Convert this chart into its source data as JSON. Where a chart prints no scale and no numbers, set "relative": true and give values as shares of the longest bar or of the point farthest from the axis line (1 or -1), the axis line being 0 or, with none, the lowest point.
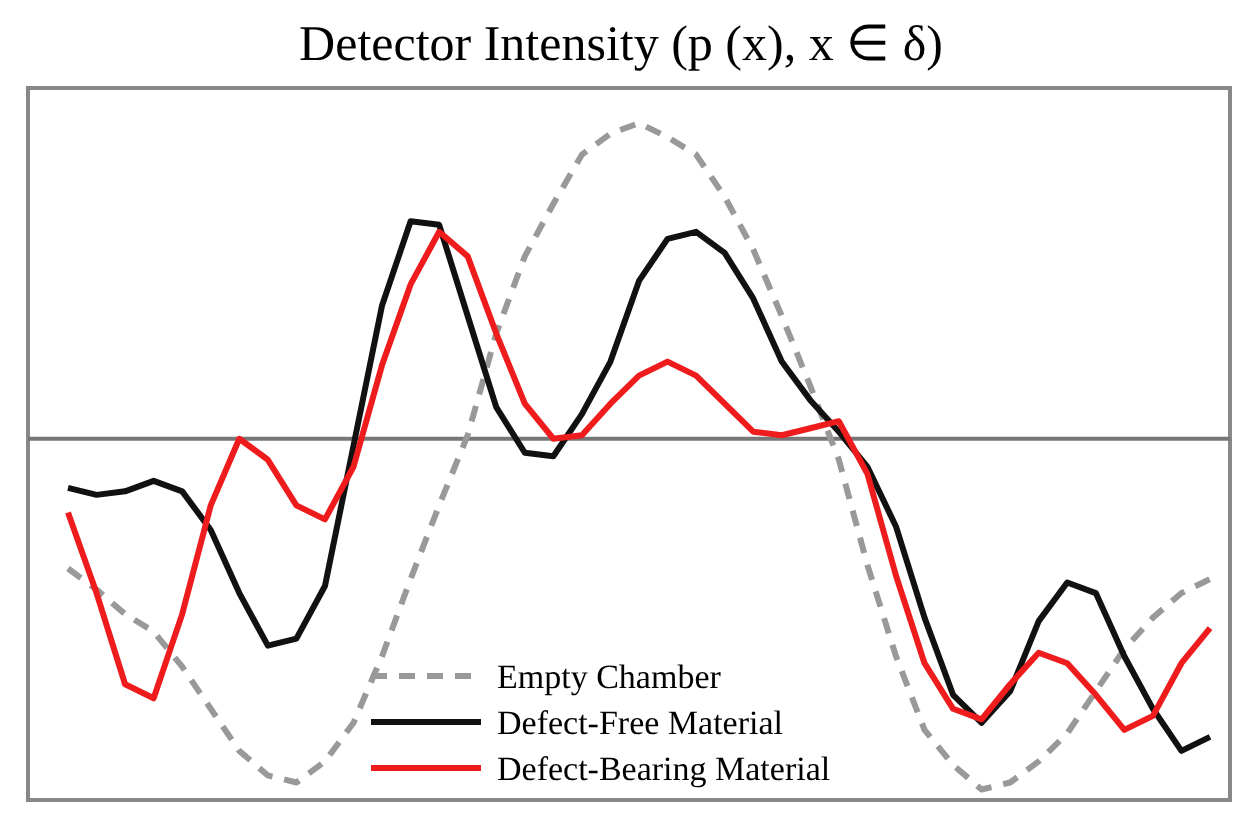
{
  "chart_data": {
    "type": "line",
    "title": "Detector Intensity (p (x), x ∈ δ)",
    "relative": true,
    "legend": "bottom",
    "marker": "none",
    "categories": [
      null,
      null,
      null,
      null,
      null,
      null,
      null,
      null,
      null,
      null,
      null,
      null,
      null,
      null,
      null,
      null,
      null,
      null,
      null,
      null,
      null,
      null,
      null,
      null,
      null,
      null,
      null,
      null,
      null,
      null,
      null,
      null,
      null,
      null,
      null,
      null,
      null,
      null,
      null,
      null,
      null
    ],
    "series": [
      {
        "name": "Empty Chamber",
        "color": "#999999",
        "line_style": "dashed",
        "values": [
          -0.37,
          -0.43,
          -0.5,
          -0.55,
          -0.65,
          -0.77,
          -0.89,
          -0.96,
          -0.98,
          -0.92,
          -0.81,
          -0.62,
          -0.4,
          -0.19,
          0.01,
          0.3,
          0.52,
          0.67,
          0.81,
          0.87,
          0.9,
          0.86,
          0.81,
          0.69,
          0.54,
          0.35,
          0.15,
          -0.06,
          -0.36,
          -0.62,
          -0.83,
          -0.93,
          -1.0,
          -0.98,
          -0.92,
          -0.84,
          -0.72,
          -0.6,
          -0.51,
          -0.44,
          -0.4
        ]
      },
      {
        "name": "Defect-Free Material",
        "color": "#111111",
        "line_style": "solid",
        "values": [
          -0.14,
          -0.16,
          -0.15,
          -0.12,
          -0.15,
          -0.26,
          -0.44,
          -0.59,
          -0.57,
          -0.42,
          -0.02,
          0.38,
          0.62,
          0.61,
          0.35,
          0.09,
          -0.04,
          -0.05,
          0.07,
          0.22,
          0.45,
          0.57,
          0.59,
          0.53,
          0.4,
          0.22,
          0.11,
          0.02,
          -0.08,
          -0.25,
          -0.51,
          -0.73,
          -0.81,
          -0.72,
          -0.52,
          -0.41,
          -0.44,
          -0.62,
          -0.77,
          -0.89,
          -0.85
        ]
      },
      {
        "name": "Defect-Bearing Material",
        "color": "#ee1c1c",
        "line_style": "solid",
        "values": [
          -0.21,
          -0.44,
          -0.7,
          -0.74,
          -0.5,
          -0.19,
          0.0,
          -0.06,
          -0.19,
          -0.23,
          -0.08,
          0.21,
          0.44,
          0.59,
          0.52,
          0.3,
          0.1,
          0.0,
          0.01,
          0.1,
          0.18,
          0.22,
          0.18,
          0.1,
          0.02,
          0.01,
          0.03,
          0.05,
          -0.1,
          -0.39,
          -0.64,
          -0.77,
          -0.8,
          -0.7,
          -0.61,
          -0.64,
          -0.73,
          -0.83,
          -0.79,
          -0.64,
          -0.54
        ]
      }
    ]
  }
}
